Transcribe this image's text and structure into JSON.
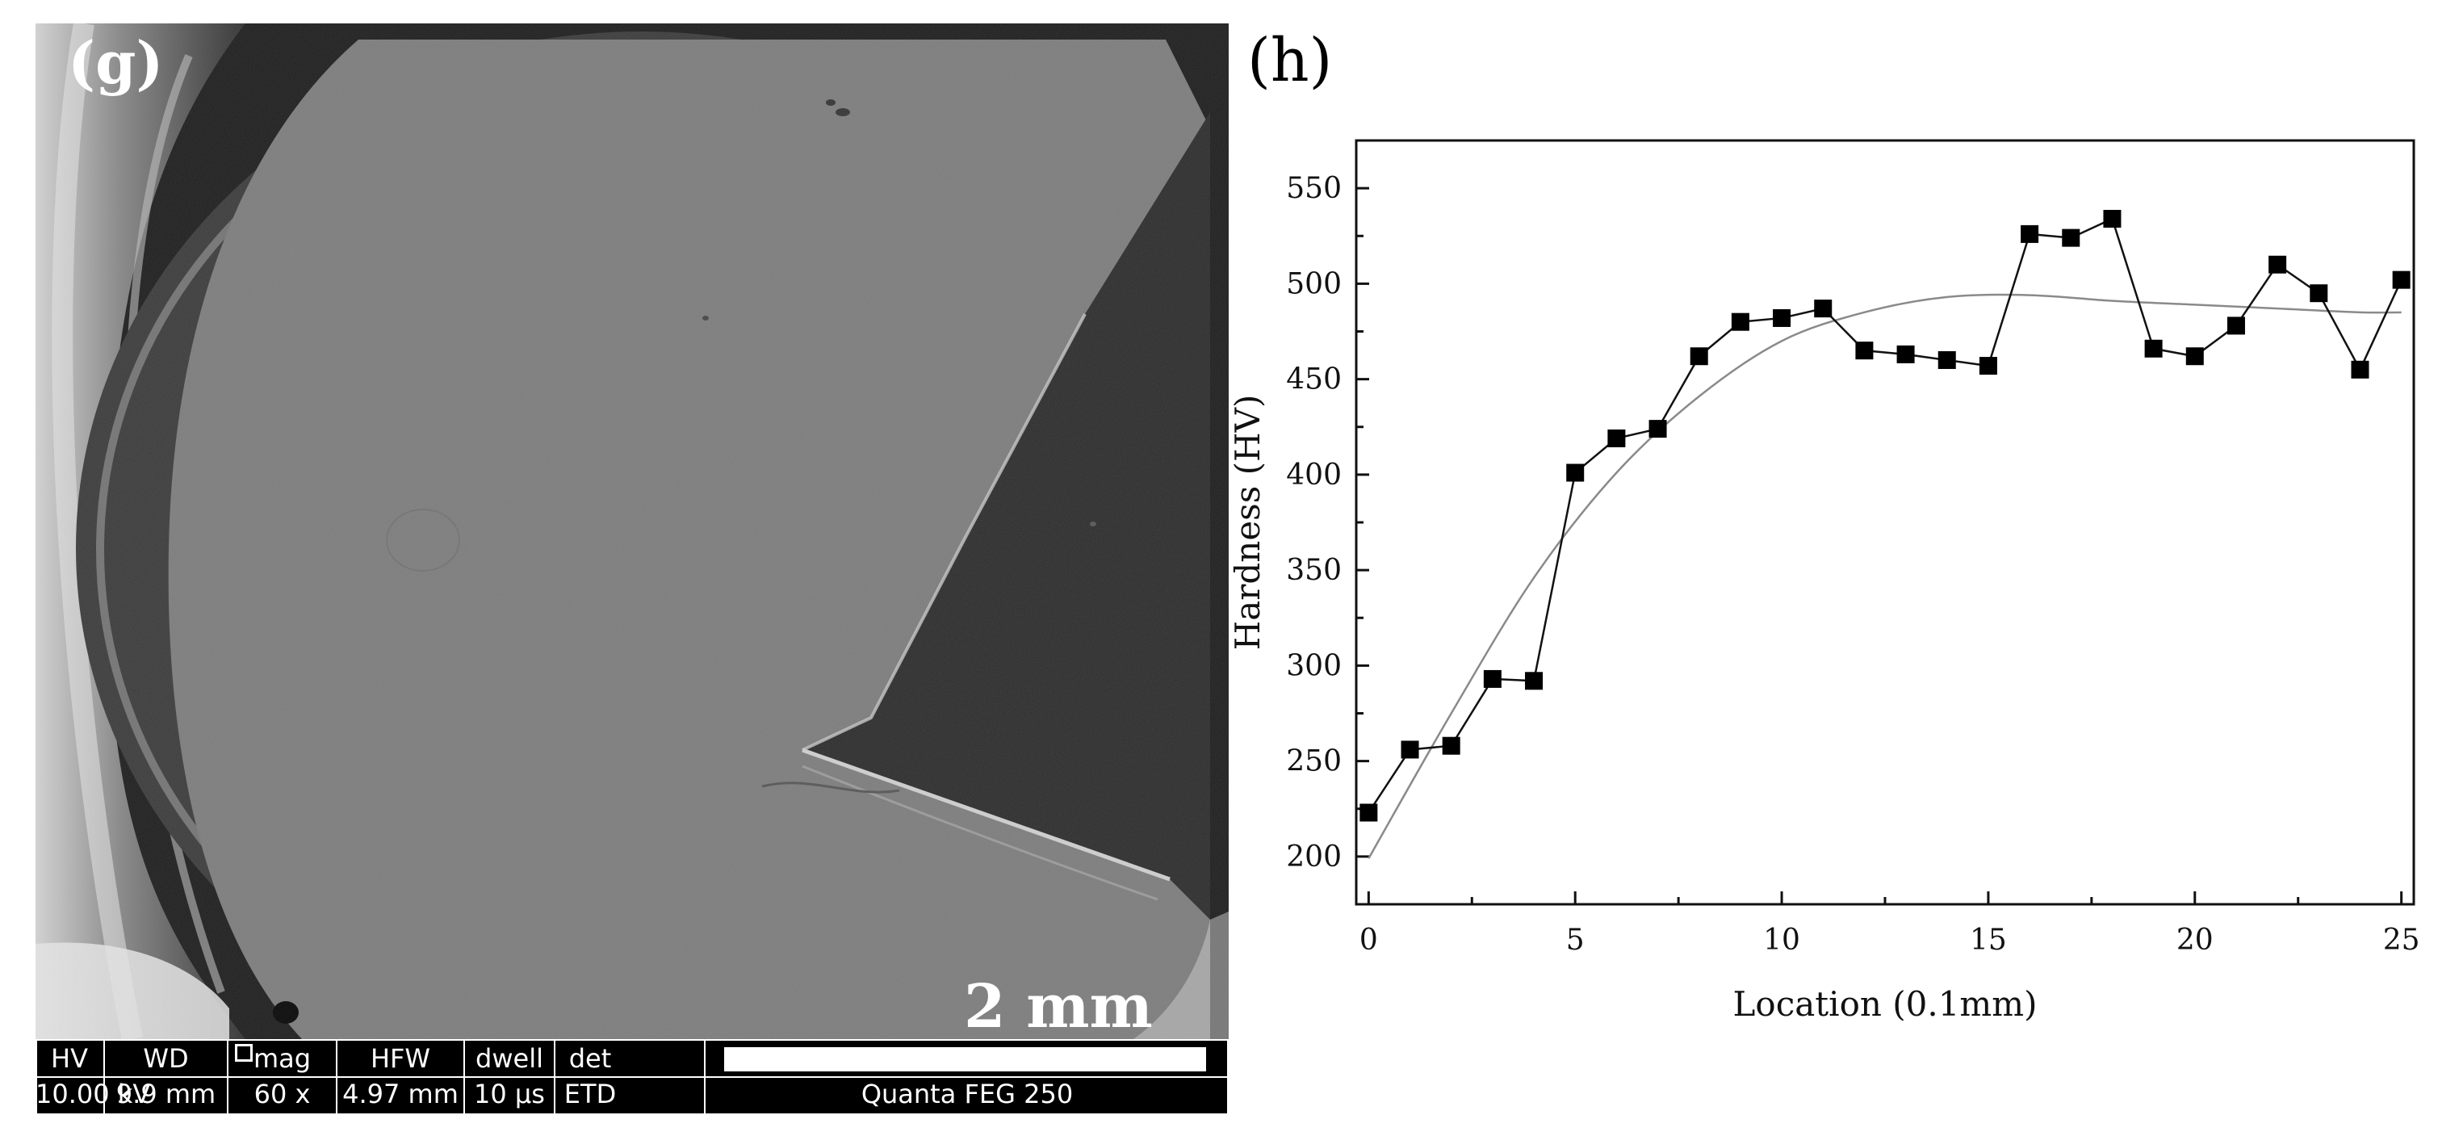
{
  "panel_g": {
    "label": "(g)",
    "scale_label": "2 mm",
    "databar": {
      "hv": {
        "header": "HV",
        "value": "10.00 kV"
      },
      "wd": {
        "header": "WD",
        "value": "9.9 mm"
      },
      "mag": {
        "header": "mag",
        "value": "60 x"
      },
      "hfw": {
        "header": "HFW",
        "value": "4.97 mm"
      },
      "dwell": {
        "header": "dwell",
        "value": "10 µs"
      },
      "det": {
        "header": "det",
        "value": "ETD"
      },
      "microscope": "Quanta FEG 250"
    }
  },
  "panel_h": {
    "label": "(h)"
  },
  "chart_data": {
    "type": "line",
    "title": "",
    "xlabel": "Location (0.1mm)",
    "ylabel": "Hardness (HV)",
    "xlim": [
      -0.3,
      25.3
    ],
    "ylim": [
      175,
      575
    ],
    "x_ticks": [
      0,
      5,
      10,
      15,
      20,
      25
    ],
    "y_ticks": [
      200,
      250,
      300,
      350,
      400,
      450,
      500,
      550
    ],
    "grid": false,
    "legend": "none",
    "series": [
      {
        "style": "line-with-square-markers",
        "x": [
          0,
          1,
          2,
          3,
          4,
          5,
          6,
          7,
          8,
          9,
          10,
          11,
          12,
          13,
          14,
          15,
          16,
          17,
          18,
          19,
          20,
          21,
          22,
          23,
          24,
          25
        ],
        "y": [
          223,
          256,
          258,
          293,
          292,
          401,
          419,
          424,
          462,
          480,
          482,
          487,
          465,
          463,
          460,
          457,
          526,
          524,
          534,
          466,
          462,
          478,
          510,
          495,
          455,
          502
        ]
      },
      {
        "style": "smooth-fit-curve",
        "x": [
          0,
          2,
          4,
          6,
          8,
          10,
          12,
          14,
          16,
          18,
          20,
          22,
          24,
          25
        ],
        "y": [
          199,
          275,
          346,
          401,
          441,
          470,
          485,
          493,
          494,
          491,
          489,
          487,
          485,
          485
        ]
      }
    ],
    "colors": {
      "markers": "#000000",
      "line": "#111111",
      "fit": "#8a8a8a"
    }
  }
}
